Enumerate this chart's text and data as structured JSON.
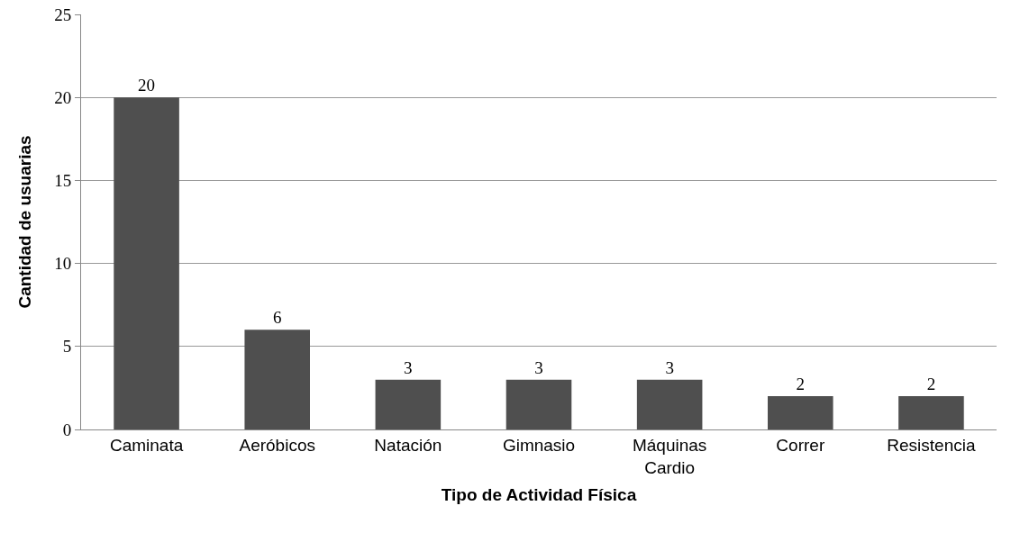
{
  "chart_data": {
    "type": "bar",
    "xlabel": "Tipo de Actividad Física",
    "ylabel": "Cantidad de usuarias",
    "categories": [
      "Caminata",
      "Aeróbicos",
      "Natación",
      "Gimnasio",
      "Máquinas Cardio",
      "Correr",
      "Resistencia"
    ],
    "values": [
      20,
      6,
      3,
      3,
      3,
      2,
      2
    ],
    "color": "#4f4f4f",
    "ylim": [
      0,
      25
    ],
    "yticks": [
      0,
      5,
      10,
      15,
      20,
      25
    ],
    "grid": "y",
    "data_labels": true,
    "legend": false
  }
}
